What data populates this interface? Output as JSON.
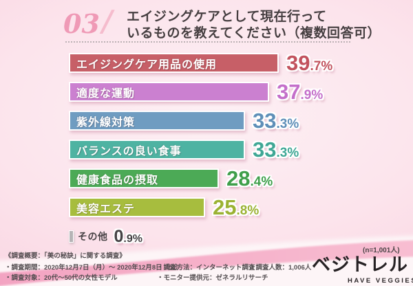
{
  "header": {
    "number": "03",
    "slash": "/",
    "title_line1": "エイジングケアとして現在行って",
    "title_line2": "いるものを教えてください（複数回答可）"
  },
  "chart_data": {
    "type": "bar",
    "orientation": "horizontal",
    "title": "エイジングケアとして現在行っているものを教えてください（複数回答可）",
    "unit": "%",
    "xlim": [
      0,
      40
    ],
    "grid": false,
    "legend": "none",
    "categories": [
      "エイジングケア用品の使用",
      "適度な運動",
      "紫外線対策",
      "バランスの良い食事",
      "健康食品の摂取",
      "美容エステ",
      "その他"
    ],
    "values": [
      39.7,
      37.9,
      33.3,
      33.3,
      28.4,
      25.8,
      0.9
    ],
    "bars": [
      {
        "label": "エイジングケア用品の使用",
        "value": 39.7,
        "int": "39",
        "frac": ".7%",
        "color": "#c75f67",
        "pct_color": "#c2525d"
      },
      {
        "label": "適度な運動",
        "value": 37.9,
        "int": "37",
        "frac": ".9%",
        "color": "#cb80d0",
        "pct_color": "#c46fca"
      },
      {
        "label": "紫外線対策",
        "value": 33.3,
        "int": "33",
        "frac": ".3%",
        "color": "#6f9cc1",
        "pct_color": "#5e8fb8"
      },
      {
        "label": "バランスの良い食事",
        "value": 33.3,
        "int": "33",
        "frac": ".3%",
        "color": "#4eb3a2",
        "pct_color": "#3fa795"
      },
      {
        "label": "健康食品の摂取",
        "value": 28.4,
        "int": "28",
        "frac": ".4%",
        "color": "#4caa56",
        "pct_color": "#3f9f4b"
      },
      {
        "label": "美容エステ",
        "value": 25.8,
        "int": "25",
        "frac": ".8%",
        "color": "#a7bd3e",
        "pct_color": "#9bb233"
      },
      {
        "label": "その他",
        "value": 0.9,
        "int": "0",
        "frac": ".9%",
        "color": "#b6b4b6",
        "pct_color": "#454144"
      }
    ]
  },
  "footer": {
    "overview": "《調査概要：「美の秘訣」に関する調査》",
    "period": "・調査期間：2020年12月7日（月）～ 2020年12月8日（火）",
    "subject": "・調査対象：20代～50代の女性モデル",
    "method": "・調査方法：インターネット調査",
    "monitor": "・モニター提供元：ゼネラルリサーチ",
    "count": "・調査人数：1,006人",
    "sample_size": "(n=1,001人)"
  },
  "logo": {
    "name": "ベジトレル",
    "tagline": "HAVE VEGGIES"
  },
  "colors": {
    "background_pink": "#fce4ec",
    "ribbon_pink": "#f4a8c4",
    "accent_number": "#ef9ab6",
    "footer_text": "#534d50"
  }
}
